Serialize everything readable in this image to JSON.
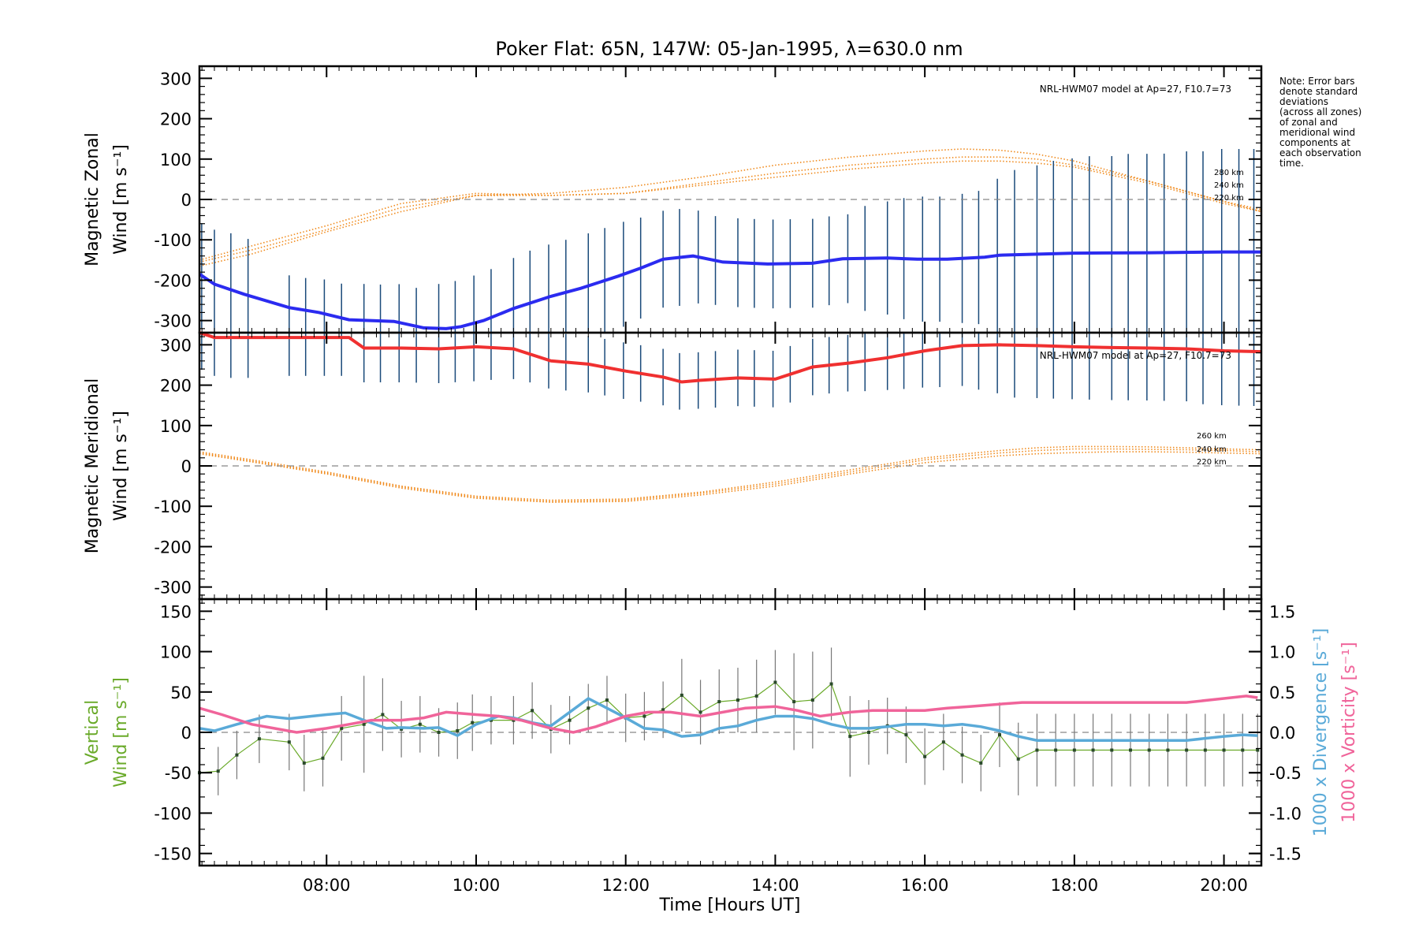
{
  "title": "Poker Flat: 65N, 147W: 05-Jan-1995, λ=630.0 nm",
  "note_lines": [
    "Note: Error bars",
    "denote standard",
    "deviations",
    "(across all zones)",
    "of zonal and",
    "meridional wind",
    "components at",
    "each observation",
    "time."
  ],
  "colors": {
    "zonal": "#2b2bf0",
    "meridional": "#f03030",
    "model": "#f08a1c",
    "vertical": "#6aaa2a",
    "divergence": "#5aaad8",
    "vorticity": "#f0649a",
    "errorbar_top": "#1a4a7a",
    "errorbar_bottom": "#777777",
    "zero_line": "#888888"
  },
  "chart_data": [
    {
      "type": "line",
      "panel": "zonal",
      "ylabel_lines": [
        "Magnetic Zonal",
        "Wind [m s⁻¹]"
      ],
      "ylim": [
        -330,
        330
      ],
      "yticks": [
        300,
        200,
        100,
        0,
        -100,
        -200,
        -300
      ],
      "xlim": [
        6.3,
        20.5
      ],
      "model_label": "NRL-HWM07 model at Ap=27, F10.7=73",
      "model_alt_labels": [
        "280 km",
        "240 km",
        "220 km"
      ],
      "series": [
        {
          "x": [
            6.3,
            6.5,
            6.9,
            7.5,
            7.9,
            8.3,
            8.9,
            9.3,
            9.6,
            9.8,
            10.1,
            10.5,
            11.0,
            11.4,
            11.9,
            12.2,
            12.5,
            12.9,
            13.3,
            13.9,
            14.5,
            14.9,
            15.5,
            15.9,
            16.3,
            16.8,
            17.0,
            18.0,
            19.0,
            20.0,
            20.5
          ],
          "values": [
            -185,
            -210,
            -235,
            -268,
            -280,
            -298,
            -302,
            -318,
            -320,
            -315,
            -300,
            -270,
            -240,
            -220,
            -190,
            -170,
            -148,
            -140,
            -155,
            -160,
            -158,
            -147,
            -145,
            -148,
            -148,
            -143,
            -138,
            -133,
            -132,
            -130,
            -130
          ]
        }
      ],
      "error_bar_x": [
        6.33,
        6.5,
        6.72,
        6.95,
        7.5,
        7.72,
        7.97,
        8.2,
        8.5,
        8.72,
        8.97,
        9.2,
        9.5,
        9.72,
        9.97,
        10.2,
        10.5,
        10.72,
        10.97,
        11.2,
        11.5,
        11.72,
        11.97,
        12.2,
        12.5,
        12.72,
        12.97,
        13.2,
        13.5,
        13.72,
        13.97,
        14.2,
        14.5,
        14.72,
        14.97,
        15.2,
        15.5,
        15.72,
        15.97,
        16.2,
        16.5,
        16.72,
        16.97,
        17.2,
        17.5,
        17.72,
        17.97,
        18.2,
        18.5,
        18.72,
        18.97,
        19.2,
        19.5,
        19.72,
        19.97,
        20.2,
        20.4
      ],
      "error_halfwidth": [
        130,
        135,
        140,
        140,
        80,
        80,
        85,
        85,
        90,
        90,
        95,
        95,
        110,
        115,
        118,
        120,
        125,
        130,
        130,
        130,
        130,
        130,
        130,
        125,
        120,
        120,
        115,
        110,
        110,
        110,
        110,
        110,
        110,
        110,
        110,
        130,
        140,
        150,
        155,
        155,
        160,
        165,
        190,
        210,
        220,
        230,
        235,
        240,
        240,
        245,
        245,
        245,
        250,
        250,
        255,
        255,
        255
      ],
      "model_curves": [
        {
          "alt": "280 km",
          "x": [
            6.3,
            7.0,
            8.0,
            9.0,
            10.0,
            11.0,
            12.0,
            13.0,
            14.0,
            15.0,
            16.0,
            16.5,
            17.0,
            17.5,
            18.0,
            18.5,
            19.0,
            19.5,
            20.0,
            20.5
          ],
          "values": [
            -165,
            -135,
            -80,
            -30,
            10,
            15,
            30,
            55,
            85,
            105,
            120,
            125,
            122,
            112,
            95,
            70,
            45,
            20,
            -5,
            -25
          ]
        },
        {
          "alt": "240 km",
          "x": [
            6.3,
            7.0,
            8.0,
            9.0,
            10.0,
            11.0,
            12.0,
            13.0,
            14.0,
            15.0,
            16.0,
            16.5,
            17.0,
            17.5,
            18.0,
            18.5,
            19.0,
            19.5,
            20.0,
            20.5
          ],
          "values": [
            -155,
            -125,
            -75,
            -20,
            10,
            10,
            15,
            40,
            65,
            85,
            100,
            105,
            105,
            100,
            85,
            65,
            45,
            20,
            -5,
            -30
          ]
        },
        {
          "alt": "220 km",
          "x": [
            6.3,
            7.0,
            8.0,
            9.0,
            10.0,
            11.0,
            12.0,
            13.0,
            14.0,
            15.0,
            16.0,
            16.5,
            17.0,
            17.5,
            18.0,
            18.5,
            19.0,
            19.5,
            20.0,
            20.5
          ],
          "values": [
            -150,
            -115,
            -65,
            -10,
            15,
            10,
            15,
            35,
            55,
            75,
            90,
            95,
            95,
            90,
            80,
            60,
            40,
            15,
            -10,
            -30
          ]
        }
      ]
    },
    {
      "type": "line",
      "panel": "meridional",
      "ylabel_lines": [
        "Magnetic Meridional",
        "Wind [m s⁻¹]"
      ],
      "ylim": [
        -330,
        330
      ],
      "yticks": [
        300,
        200,
        100,
        0,
        -100,
        -200,
        -300
      ],
      "xlim": [
        6.3,
        20.5
      ],
      "model_label": "NRL-HWM07 model at Ap=27, F10.7=73",
      "model_alt_labels": [
        "260 km",
        "240 km",
        "220 km"
      ],
      "series": [
        {
          "x": [
            6.3,
            6.5,
            7.0,
            7.5,
            8.0,
            8.3,
            8.5,
            9.0,
            9.5,
            10.0,
            10.5,
            11.0,
            11.5,
            12.0,
            12.5,
            12.75,
            13.0,
            13.5,
            14.0,
            14.5,
            15.0,
            15.5,
            16.0,
            16.5,
            17.0,
            17.5,
            18.0,
            18.5,
            19.0,
            19.5,
            20.0,
            20.5
          ],
          "values": [
            330,
            318,
            318,
            318,
            318,
            318,
            292,
            292,
            290,
            295,
            290,
            260,
            252,
            235,
            220,
            208,
            212,
            218,
            215,
            245,
            255,
            268,
            285,
            298,
            300,
            298,
            295,
            293,
            292,
            290,
            285,
            283
          ]
        }
      ],
      "error_bar_x": [
        6.33,
        6.5,
        6.72,
        6.95,
        7.5,
        7.72,
        7.97,
        8.2,
        8.5,
        8.72,
        8.97,
        9.2,
        9.5,
        9.72,
        9.97,
        10.2,
        10.5,
        10.72,
        10.97,
        11.2,
        11.5,
        11.72,
        11.97,
        12.2,
        12.5,
        12.72,
        12.97,
        13.2,
        13.5,
        13.72,
        13.97,
        14.2,
        14.5,
        14.72,
        14.97,
        15.2,
        15.5,
        15.72,
        15.97,
        16.2,
        16.5,
        16.72,
        16.97,
        17.2,
        17.5,
        17.72,
        17.97,
        18.2,
        18.5,
        18.72,
        18.97,
        19.2,
        19.5,
        19.72,
        19.97,
        20.2,
        20.4
      ],
      "error_halfwidth": [
        90,
        95,
        100,
        100,
        95,
        95,
        95,
        95,
        85,
        85,
        85,
        85,
        85,
        85,
        85,
        80,
        75,
        70,
        70,
        70,
        70,
        70,
        70,
        70,
        70,
        70,
        70,
        70,
        70,
        70,
        70,
        70,
        70,
        70,
        70,
        75,
        80,
        85,
        90,
        95,
        100,
        110,
        120,
        130,
        130,
        130,
        130,
        130,
        130,
        130,
        130,
        130,
        130,
        135,
        135,
        135,
        135
      ],
      "model_curves": [
        {
          "alt": "260 km",
          "x": [
            6.3,
            7.0,
            8.0,
            9.0,
            10.0,
            11.0,
            12.0,
            13.0,
            14.0,
            15.0,
            16.0,
            17.0,
            17.5,
            18.0,
            18.5,
            19.0,
            19.5,
            20.0,
            20.5
          ],
          "values": [
            35,
            15,
            -15,
            -50,
            -75,
            -85,
            -82,
            -65,
            -40,
            -10,
            20,
            38,
            45,
            48,
            48,
            47,
            45,
            42,
            40
          ]
        },
        {
          "alt": "240 km",
          "x": [
            6.3,
            7.0,
            8.0,
            9.0,
            10.0,
            11.0,
            12.0,
            13.0,
            14.0,
            15.0,
            16.0,
            17.0,
            17.5,
            18.0,
            18.5,
            19.0,
            19.5,
            20.0,
            20.5
          ],
          "values": [
            32,
            12,
            -18,
            -52,
            -78,
            -88,
            -85,
            -68,
            -45,
            -15,
            15,
            32,
            38,
            42,
            42,
            41,
            40,
            38,
            35
          ]
        },
        {
          "alt": "220 km",
          "x": [
            6.3,
            7.0,
            8.0,
            9.0,
            10.0,
            11.0,
            12.0,
            13.0,
            14.0,
            15.0,
            16.0,
            17.0,
            17.5,
            18.0,
            18.5,
            19.0,
            19.5,
            20.0,
            20.5
          ],
          "values": [
            30,
            10,
            -20,
            -55,
            -80,
            -90,
            -88,
            -72,
            -50,
            -20,
            8,
            25,
            30,
            33,
            35,
            35,
            34,
            32,
            30
          ]
        }
      ]
    },
    {
      "type": "line",
      "panel": "vertical",
      "ylabel_lines": [
        "Vertical",
        "Wind [m s⁻¹]"
      ],
      "ylim": [
        -165,
        165
      ],
      "yticks": [
        150,
        100,
        50,
        0,
        -50,
        -100,
        -150
      ],
      "y2label_lines": [
        "1000 x Divergence [s⁻¹]",
        "1000 x Vorticity [s⁻¹]"
      ],
      "y2lim": [
        -1.65,
        1.65
      ],
      "y2ticks": [
        "1.5",
        "1.0",
        "0.5",
        "0.0",
        "-0.5",
        "-1.0",
        "-1.5"
      ],
      "y2tick_values": [
        1.5,
        1.0,
        0.5,
        0.0,
        -0.5,
        -1.0,
        -1.5
      ],
      "xlim": [
        6.3,
        20.5
      ],
      "xticks": [
        "08:00",
        "10:00",
        "12:00",
        "14:00",
        "16:00",
        "18:00",
        "20:00"
      ],
      "xtick_values": [
        8,
        10,
        12,
        14,
        16,
        18,
        20
      ],
      "xlabel": "Time [Hours UT]",
      "vertical_wind": {
        "x": [
          6.3,
          6.55,
          6.8,
          7.1,
          7.5,
          7.7,
          7.95,
          8.2,
          8.5,
          8.75,
          9.0,
          9.25,
          9.5,
          9.75,
          9.95,
          10.2,
          10.5,
          10.75,
          11.0,
          11.25,
          11.5,
          11.75,
          12.0,
          12.25,
          12.5,
          12.75,
          13.0,
          13.25,
          13.5,
          13.75,
          14.0,
          14.25,
          14.5,
          14.75,
          15.0,
          15.25,
          15.5,
          15.75,
          16.0,
          16.25,
          16.5,
          16.75,
          17.0,
          17.25,
          17.5,
          17.75,
          18.0,
          18.25,
          18.5,
          18.75,
          19.0,
          19.25,
          19.5,
          19.75,
          20.0,
          20.25,
          20.45
        ],
        "values": [
          -50,
          -48,
          -28,
          -8,
          -12,
          -38,
          -32,
          5,
          10,
          22,
          4,
          10,
          0,
          2,
          12,
          15,
          15,
          27,
          4,
          15,
          30,
          40,
          18,
          20,
          28,
          46,
          25,
          38,
          40,
          45,
          62,
          38,
          40,
          60,
          -5,
          0,
          8,
          -3,
          -30,
          -12,
          -28,
          -38,
          -3,
          -33,
          -22,
          -22,
          -22,
          -22,
          -22,
          -22,
          -22,
          -22,
          -22,
          -22,
          -22,
          -22,
          -22
        ],
        "errors": [
          35,
          30,
          30,
          30,
          35,
          35,
          35,
          40,
          60,
          45,
          35,
          35,
          30,
          35,
          35,
          30,
          30,
          35,
          30,
          30,
          30,
          30,
          30,
          30,
          35,
          45,
          40,
          40,
          40,
          45,
          40,
          60,
          60,
          45,
          50,
          40,
          35,
          35,
          35,
          35,
          35,
          35,
          40,
          45,
          45,
          45,
          45,
          45,
          45,
          45,
          45,
          45,
          45,
          45,
          45,
          45,
          45
        ]
      },
      "series": [
        {
          "name": "1000 x Divergence [s⁻¹]",
          "axis": "right",
          "x": [
            6.3,
            6.5,
            6.8,
            7.2,
            7.5,
            7.8,
            8.0,
            8.25,
            8.5,
            8.8,
            9.0,
            9.3,
            9.5,
            9.75,
            10.0,
            10.3,
            10.5,
            10.75,
            11.0,
            11.25,
            11.5,
            11.75,
            12.0,
            12.25,
            12.5,
            12.75,
            13.0,
            13.25,
            13.5,
            13.75,
            14.0,
            14.25,
            14.5,
            14.75,
            15.0,
            15.25,
            15.5,
            15.75,
            16.0,
            16.25,
            16.5,
            16.75,
            17.0,
            17.25,
            17.5,
            17.75,
            18.0,
            18.5,
            19.0,
            19.5,
            20.0,
            20.25,
            20.45
          ],
          "values": [
            0.05,
            0.02,
            0.1,
            0.2,
            0.17,
            0.2,
            0.22,
            0.24,
            0.15,
            0.05,
            0.06,
            0.05,
            0.06,
            -0.04,
            0.1,
            0.2,
            0.18,
            0.12,
            0.08,
            0.25,
            0.42,
            0.3,
            0.18,
            0.05,
            0.03,
            -0.05,
            -0.03,
            0.05,
            0.08,
            0.15,
            0.2,
            0.2,
            0.17,
            0.1,
            0.05,
            0.05,
            0.07,
            0.1,
            0.1,
            0.08,
            0.1,
            0.07,
            0.02,
            -0.05,
            -0.1,
            -0.1,
            -0.1,
            -0.1,
            -0.1,
            -0.1,
            -0.05,
            -0.03,
            -0.04
          ]
        },
        {
          "name": "1000 x Vorticity [s⁻¹]",
          "axis": "right",
          "x": [
            6.3,
            6.6,
            7.0,
            7.3,
            7.6,
            8.0,
            8.3,
            8.6,
            9.0,
            9.3,
            9.6,
            10.0,
            10.3,
            10.6,
            11.0,
            11.3,
            11.6,
            12.0,
            12.3,
            12.6,
            13.0,
            13.3,
            13.6,
            14.0,
            14.3,
            14.6,
            15.0,
            15.3,
            15.6,
            16.0,
            16.3,
            16.6,
            17.0,
            17.3,
            17.6,
            18.0,
            18.5,
            19.0,
            19.5,
            20.0,
            20.3,
            20.45
          ],
          "values": [
            0.3,
            0.22,
            0.1,
            0.05,
            0.0,
            0.05,
            0.1,
            0.15,
            0.15,
            0.18,
            0.25,
            0.22,
            0.2,
            0.15,
            0.05,
            0.0,
            0.07,
            0.2,
            0.25,
            0.25,
            0.2,
            0.25,
            0.3,
            0.32,
            0.27,
            0.2,
            0.25,
            0.27,
            0.27,
            0.27,
            0.3,
            0.32,
            0.35,
            0.37,
            0.37,
            0.37,
            0.37,
            0.37,
            0.37,
            0.42,
            0.45,
            0.43
          ]
        }
      ]
    }
  ]
}
